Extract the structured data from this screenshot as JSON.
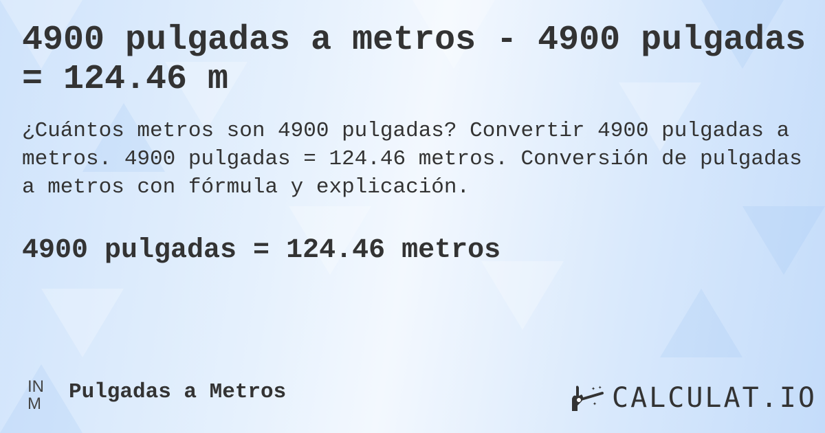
{
  "title": "4900 pulgadas a metros - 4900 pulgadas = 124.46 m",
  "description": "¿Cuántos metros son 4900 pulgadas? Convertir 4900 pulgadas a metros. 4900 pulgadas = 124.46 metros. Conversión de pulgadas a metros con fórmula y explicación.",
  "result": "4900 pulgadas = 124.46 metros",
  "footer": {
    "icon_top": "IN",
    "icon_bottom": "M",
    "label": "Pulgadas a Metros"
  },
  "logo": {
    "text": "CALCULAT.IO",
    "icon": "magic-wand-hand-icon"
  },
  "colors": {
    "text": "#333333",
    "background": "#dbeafc"
  }
}
